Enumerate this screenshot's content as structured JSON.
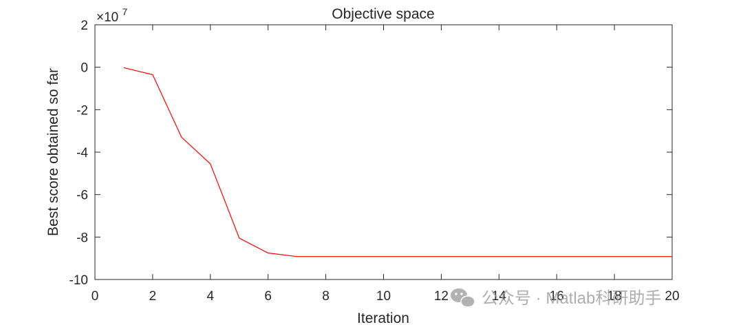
{
  "chart_data": {
    "type": "line",
    "title": "Objective space",
    "xlabel": "Iteration",
    "ylabel": "Best score obtained so far",
    "xlim": [
      0,
      20
    ],
    "ylim": [
      -10,
      2
    ],
    "x_ticks": [
      "0",
      "2",
      "4",
      "6",
      "8",
      "10",
      "12",
      "14",
      "16",
      "18",
      "20"
    ],
    "y_ticks": [
      "2",
      "0",
      "-2",
      "-4",
      "-6",
      "-8",
      "-10"
    ],
    "y_exponent": {
      "base": "×10",
      "power": "7"
    },
    "grid": false,
    "series": [
      {
        "color": "#ff0000",
        "x": [
          1,
          2,
          3,
          4,
          5,
          6,
          7,
          8,
          9,
          10,
          11,
          12,
          13,
          14,
          15,
          16,
          17,
          18,
          19,
          20
        ],
        "y": [
          -0.02,
          -0.35,
          -3.3,
          -4.55,
          -8.05,
          -8.75,
          -8.92,
          -8.92,
          -8.92,
          -8.92,
          -8.92,
          -8.92,
          -8.92,
          -8.92,
          -8.92,
          -8.92,
          -8.92,
          -8.92,
          -8.92,
          -8.92
        ]
      }
    ]
  },
  "watermark": {
    "text": "公众号 · Matlab科研助手",
    "icon": "wechat-icon"
  }
}
